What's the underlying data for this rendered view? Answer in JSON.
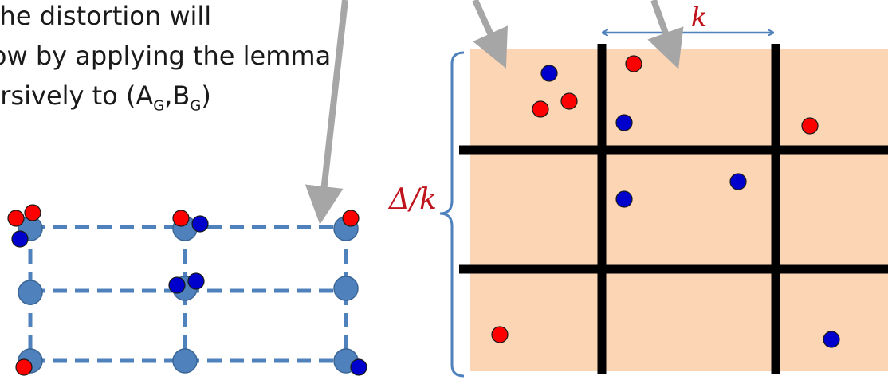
{
  "caption": {
    "line1": "The distortion will",
    "line2": "low by applying the lemma",
    "line3_prefix": "ursively to (A",
    "line3_sub1": "G",
    "line3_mid": ",B",
    "line3_sub2": "G",
    "line3_suffix": ")"
  },
  "labels": {
    "cell_size": "k",
    "side_length": "Δ/k"
  },
  "colors": {
    "red_point": "#ff0000",
    "blue_point": "#0000cc",
    "node": "#4f81bd",
    "cell_fill": "#fcd5b4",
    "grid_line": "#000000",
    "arrow_gray": "#a6a6a6",
    "label_red": "#c0141c"
  }
}
